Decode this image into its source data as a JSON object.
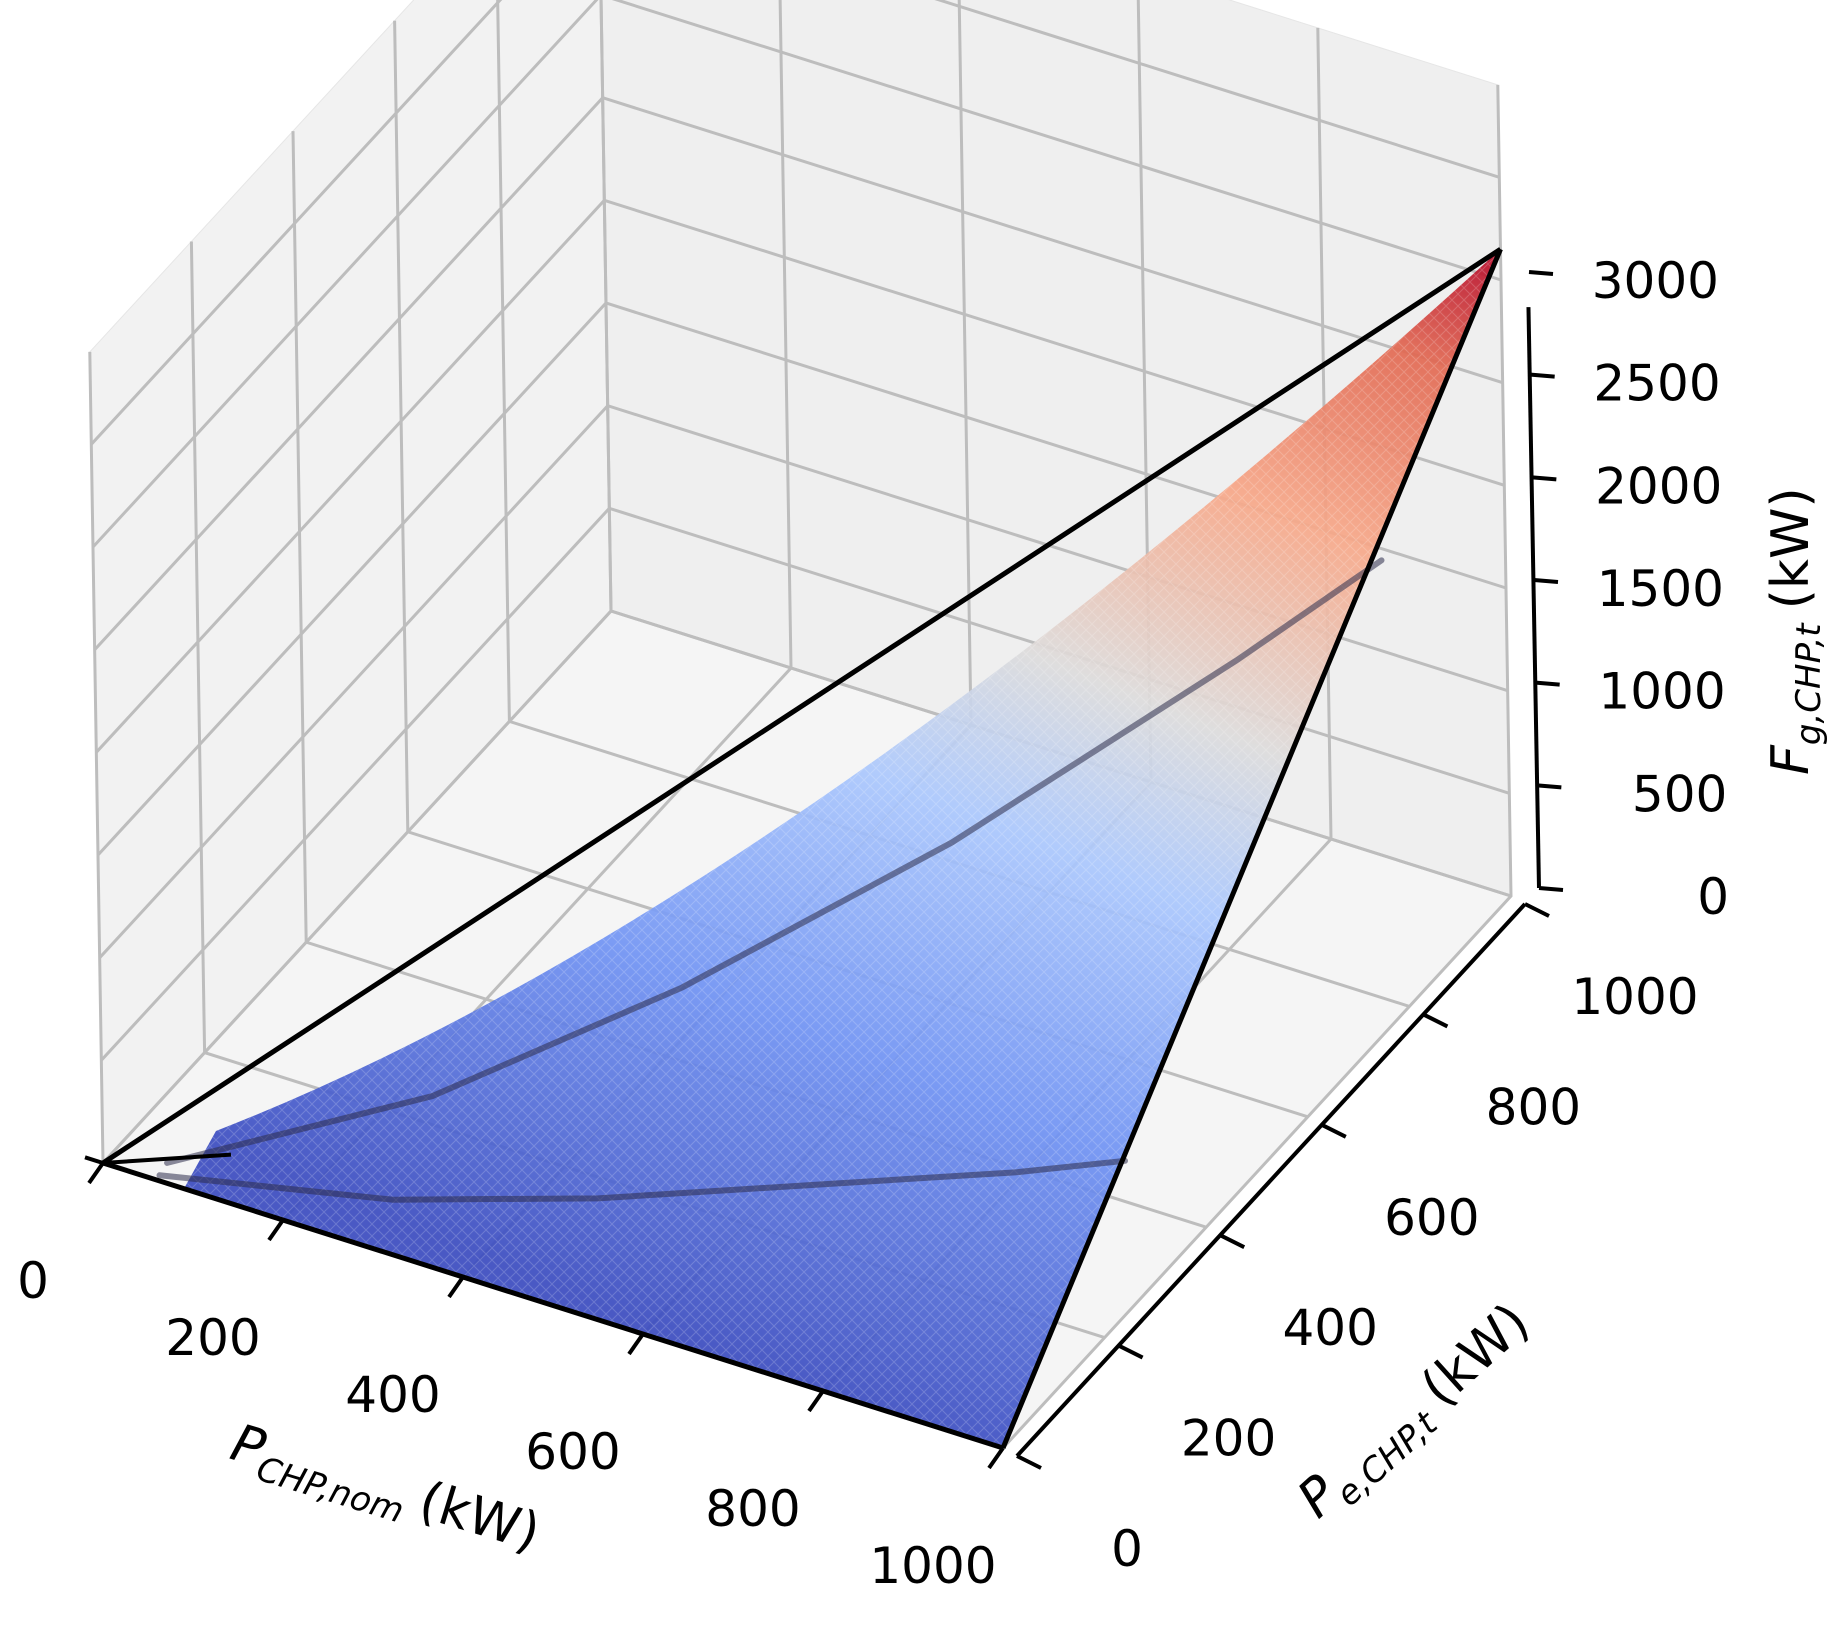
{
  "chart_data": {
    "type": "surface3d",
    "title": "",
    "x_axis": {
      "label_main": "P",
      "label_sub": "CHP,nom",
      "label_unit": "(kW)",
      "ticks": [
        0,
        200,
        400,
        600,
        800,
        1000
      ],
      "tick_labels": [
        "0",
        "200",
        "400",
        "600",
        "800",
        "1000"
      ],
      "range": [
        0,
        1000
      ]
    },
    "y_axis": {
      "label_main": "P",
      "label_sub": "e,CHP,t",
      "label_unit": "(kW)",
      "ticks": [
        0,
        200,
        400,
        600,
        800,
        1000
      ],
      "tick_labels": [
        "0",
        "200",
        "400",
        "600",
        "800",
        "1000"
      ],
      "range": [
        0,
        1000
      ]
    },
    "z_axis": {
      "label_main": "F",
      "label_sub": "g,CHP,t",
      "label_unit": "(kW)",
      "ticks": [
        0,
        500,
        1000,
        1500,
        2000,
        2500,
        3000
      ],
      "tick_labels": [
        "0",
        "500",
        "1000",
        "1500",
        "2000",
        "2500",
        "3000"
      ],
      "range": [
        0,
        3200
      ]
    },
    "surface": {
      "colormap": "coolwarm",
      "domain": "0 <= P_e,CHP,t <= P_CHP,nom",
      "corner_points": [
        {
          "x": 0,
          "y": 0,
          "z": 0
        },
        {
          "x": 1000,
          "y": 0,
          "z": 0
        },
        {
          "x": 1000,
          "y": 1000,
          "z": 3150
        }
      ],
      "edge_lines": [
        {
          "from": {
            "x": 0,
            "y": 0,
            "z": 0
          },
          "to": {
            "x": 1000,
            "y": 0,
            "z": 0
          }
        },
        {
          "from": {
            "x": 0,
            "y": 0,
            "z": 0
          },
          "to": {
            "x": 1000,
            "y": 1000,
            "z": 3150
          }
        },
        {
          "from": {
            "x": 1000,
            "y": 0,
            "z": 0
          },
          "to": {
            "x": 1000,
            "y": 1000,
            "z": 3150
          }
        }
      ],
      "interior_curves": [
        {
          "points": [
            [
              60,
              20,
              30
            ],
            [
              300,
              120,
              420
            ],
            [
              500,
              260,
              850
            ],
            [
              700,
              440,
              1350
            ],
            [
              900,
              650,
              1950
            ],
            [
              1000,
              760,
              2280
            ]
          ]
        },
        {
          "points": [
            [
              60,
              5,
              10
            ],
            [
              300,
              40,
              130
            ],
            [
              500,
              90,
              280
            ],
            [
              700,
              150,
              460
            ],
            [
              900,
              210,
              640
            ],
            [
              1000,
              245,
              740
            ]
          ]
        }
      ]
    },
    "grid": true,
    "colors": {
      "low": "#3b4cc0",
      "mid": "#dddcdc",
      "high": "#b40426",
      "pane_bg": "#f2f2f2",
      "grid_line": "#bdbdbd"
    }
  }
}
